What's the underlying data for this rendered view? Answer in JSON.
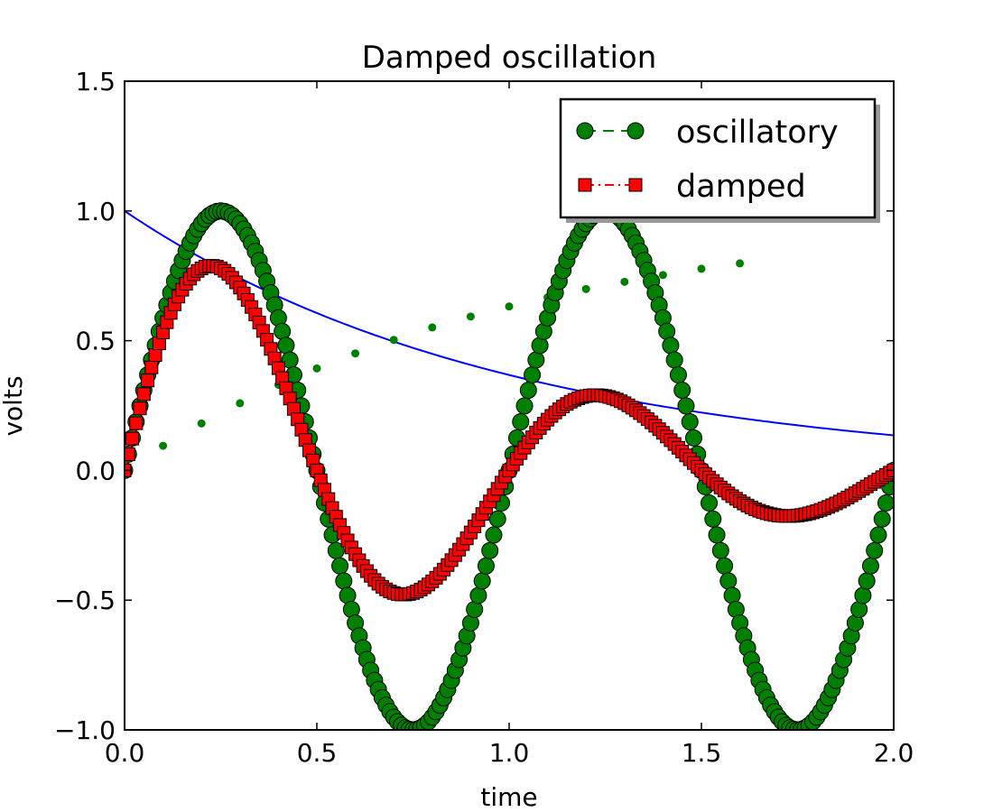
{
  "chart_data": {
    "type": "line",
    "title": "Damped oscillation",
    "xlabel": "time",
    "ylabel": "volts",
    "xlim": [
      0.0,
      2.0
    ],
    "ylim": [
      -1.0,
      1.5
    ],
    "xticks": [
      0.0,
      0.5,
      1.0,
      1.5,
      2.0
    ],
    "yticks": [
      -1.0,
      -0.5,
      0.0,
      0.5,
      1.0,
      1.5
    ],
    "xtick_labels": [
      "0.0",
      "0.5",
      "1.0",
      "1.5",
      "2.0"
    ],
    "ytick_labels": [
      "−1.0",
      "−0.5",
      "0.0",
      "0.5",
      "1.0",
      "1.5"
    ],
    "grid": false,
    "legend": {
      "position": "upper-right",
      "entries": [
        "oscillatory",
        "damped"
      ]
    },
    "series": [
      {
        "name": "oscillatory",
        "style": "dashed line with circle markers",
        "color": "#008000",
        "marker_edge": "#000000",
        "function": "sin(2*pi*t)",
        "t_start": 0.0,
        "t_end": 2.0,
        "n_points": 201,
        "in_legend": true
      },
      {
        "name": "damped",
        "style": "dash-dot line with square markers",
        "color": "#ff0000",
        "marker_edge": "#000000",
        "function": "exp(-t)*sin(2*pi*t)",
        "t_start": 0.0,
        "t_end": 2.0,
        "n_points": 201,
        "in_legend": true
      },
      {
        "name": "envelope",
        "style": "solid line",
        "color": "#0000ff",
        "function": "exp(-t)",
        "t_start": 0.0,
        "t_end": 2.0,
        "n_points": 201,
        "in_legend": false
      },
      {
        "name": "dots",
        "style": "point markers",
        "color": "#008000",
        "x": [
          0.1,
          0.2,
          0.3,
          0.4,
          0.5,
          0.6,
          0.7,
          0.8,
          0.9,
          1.0,
          1.1,
          1.2,
          1.3,
          1.4,
          1.5,
          1.6
        ],
        "y": [
          0.095,
          0.181,
          0.259,
          0.33,
          0.393,
          0.451,
          0.503,
          0.551,
          0.593,
          0.632,
          0.667,
          0.699,
          0.727,
          0.753,
          0.777,
          0.798
        ],
        "in_legend": false
      }
    ]
  }
}
